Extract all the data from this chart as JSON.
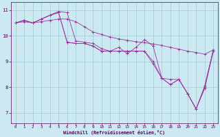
{
  "xlabel": "Windchill (Refroidissement éolien,°C)",
  "background_color": "#cce8f0",
  "line_color": "#993399",
  "hours": [
    0,
    1,
    2,
    3,
    4,
    5,
    6,
    7,
    8,
    9,
    10,
    11,
    12,
    13,
    14,
    15,
    16,
    17,
    18,
    19,
    20,
    21,
    22,
    23
  ],
  "series1": [
    10.5,
    10.6,
    10.5,
    10.65,
    10.8,
    10.95,
    10.9,
    9.8,
    9.75,
    9.7,
    9.5,
    9.4,
    9.55,
    9.3,
    9.55,
    9.85,
    9.6,
    8.35,
    8.3,
    8.3,
    7.75,
    7.15,
    8.05,
    9.45
  ],
  "series2": [
    10.5,
    10.6,
    10.5,
    10.65,
    10.8,
    10.9,
    9.75,
    9.7,
    9.7,
    9.6,
    9.4,
    9.4,
    9.4,
    9.4,
    9.4,
    9.4,
    9.0,
    8.35,
    8.1,
    8.3,
    7.75,
    7.15,
    8.0,
    9.45
  ],
  "series3": [
    10.5,
    10.6,
    10.5,
    10.65,
    10.8,
    10.9,
    9.75,
    9.7,
    9.7,
    9.6,
    9.4,
    9.4,
    9.4,
    9.4,
    9.4,
    9.4,
    8.9,
    8.35,
    8.1,
    8.3,
    7.75,
    7.15,
    7.95,
    9.4
  ],
  "series4": [
    10.5,
    10.55,
    10.5,
    10.55,
    10.6,
    10.65,
    10.65,
    10.55,
    10.35,
    10.15,
    10.05,
    9.95,
    9.88,
    9.82,
    9.77,
    9.73,
    9.68,
    9.62,
    9.55,
    9.48,
    9.4,
    9.35,
    9.28,
    9.45
  ],
  "ylim": [
    6.6,
    11.3
  ],
  "yticks": [
    7,
    8,
    9,
    10,
    11
  ],
  "xlim": [
    -0.5,
    23.5
  ],
  "xticks": [
    0,
    1,
    2,
    3,
    4,
    5,
    6,
    7,
    8,
    9,
    10,
    11,
    12,
    13,
    14,
    15,
    16,
    17,
    18,
    19,
    20,
    21,
    22,
    23
  ]
}
